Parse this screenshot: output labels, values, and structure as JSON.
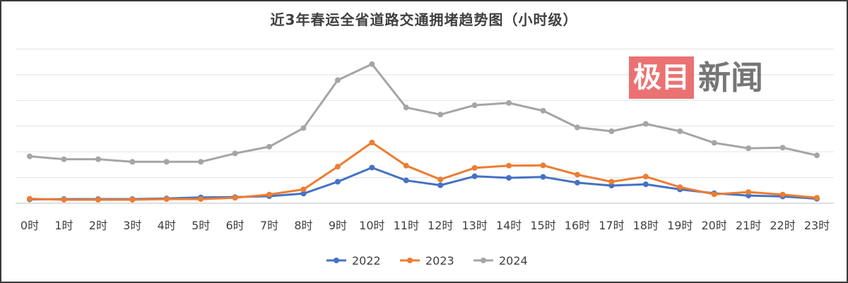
{
  "chart_data": {
    "type": "line",
    "title": "近3年春运全省道路交通拥堵趋势图（小时级）",
    "categories": [
      "0时",
      "1时",
      "2时",
      "3时",
      "4时",
      "5时",
      "6时",
      "7时",
      "8时",
      "9时",
      "10时",
      "11时",
      "12时",
      "13时",
      "14时",
      "15时",
      "16时",
      "17时",
      "18时",
      "19时",
      "20时",
      "21时",
      "22时",
      "23时"
    ],
    "series": [
      {
        "name": "2022",
        "color": "#4472c4",
        "values": [
          1.2,
          1.3,
          1.3,
          1.3,
          1.5,
          1.8,
          1.9,
          2.2,
          3.0,
          6.7,
          11.1,
          7.1,
          5.6,
          8.4,
          7.9,
          8.2,
          6.4,
          5.5,
          5.9,
          4.3,
          3.1,
          2.4,
          2.1,
          1.4
        ]
      },
      {
        "name": "2023",
        "color": "#ed7d31",
        "values": [
          1.4,
          1.1,
          1.1,
          1.1,
          1.3,
          1.3,
          1.7,
          2.7,
          4.3,
          11.4,
          18.9,
          11.7,
          7.4,
          11.0,
          11.7,
          11.8,
          8.9,
          6.7,
          8.3,
          5.0,
          2.8,
          3.5,
          2.7,
          1.7
        ]
      },
      {
        "name": "2024",
        "color": "#a5a5a5",
        "values": [
          14.6,
          13.7,
          13.7,
          12.9,
          12.9,
          12.9,
          15.5,
          17.6,
          23.4,
          38.3,
          43.3,
          29.8,
          27.6,
          30.5,
          31.2,
          28.8,
          23.6,
          22.4,
          24.7,
          22.4,
          18.8,
          17.1,
          17.3,
          14.9
        ]
      }
    ],
    "ylim": [
      0,
      56
    ],
    "yticks": [
      0,
      8,
      16,
      24,
      32,
      40,
      48
    ],
    "grid": true,
    "legend_position": "bottom",
    "y_axis_labels_shown": false
  },
  "watermark": {
    "boxed": "极目",
    "text": "新闻"
  }
}
